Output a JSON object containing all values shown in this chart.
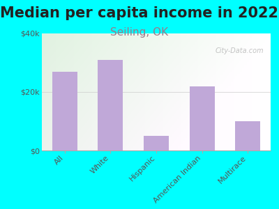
{
  "title": "Median per capita income in 2022",
  "subtitle": "Seiling, OK",
  "categories": [
    "All",
    "White",
    "Hispanic",
    "American Indian",
    "Multirace"
  ],
  "values": [
    27000,
    31000,
    5000,
    22000,
    10000
  ],
  "bar_color": "#c0a8d8",
  "background_outer": "#00ffff",
  "ylim": [
    0,
    40000
  ],
  "ytick_labels": [
    "$0",
    "$20k",
    "$40k"
  ],
  "ytick_values": [
    0,
    20000,
    40000
  ],
  "title_fontsize": 15,
  "subtitle_fontsize": 11,
  "subtitle_color": "#9a7a8a",
  "tick_color": "#555555",
  "watermark": "City-Data.com"
}
